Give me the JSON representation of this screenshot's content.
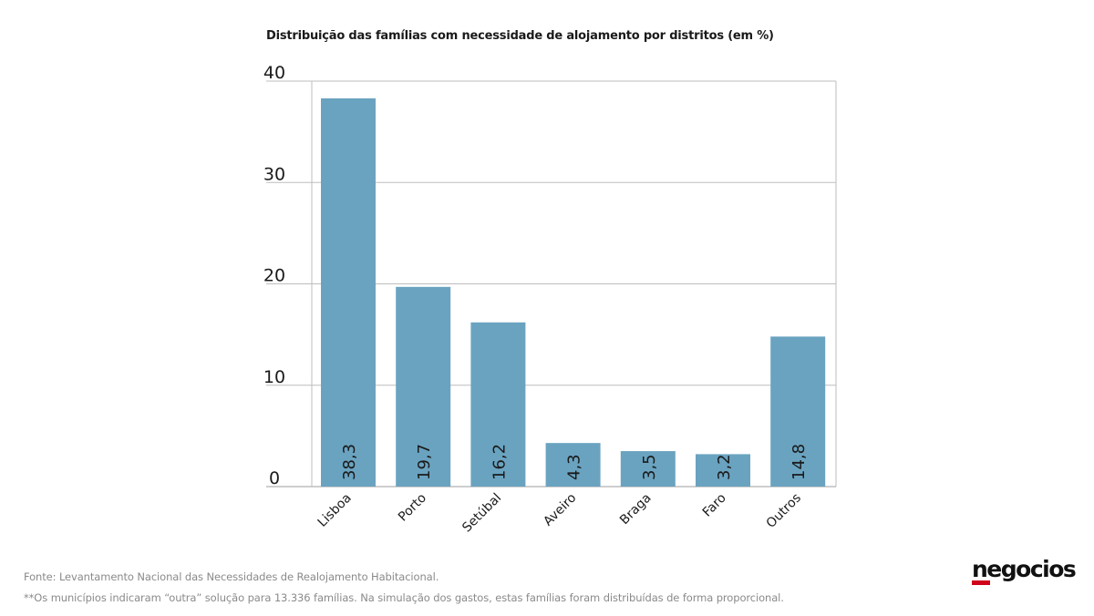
{
  "chart_data": {
    "type": "bar",
    "title": "Distribuição das famílias com necessidade de alojamento por distritos (em %)",
    "categories": [
      "Lisboa",
      "Porto",
      "Setúbal",
      "Aveiro",
      "Braga",
      "Faro",
      "Outros"
    ],
    "values": [
      38.3,
      19.7,
      16.2,
      4.3,
      3.5,
      3.2,
      14.8
    ],
    "value_labels": [
      "38,3",
      "19,7",
      "16,2",
      "4,3",
      "3,5",
      "3,2",
      "14,8"
    ],
    "y_ticks": [
      "0",
      "10",
      "20",
      "30",
      "40"
    ],
    "ylim": [
      0,
      40
    ],
    "grid": true,
    "bar_color": "#6aa3c0",
    "xlabel": "",
    "ylabel": ""
  },
  "footer": {
    "source": "Fonte: Levantamento Nacional das Necessidades de Realojamento Habitacional.",
    "note": "**Os municípios indicaram “outra” solução para 13.336 famílias. Na simulação dos gastos, estas famílias foram distribuídas de forma proporcional."
  },
  "brand": {
    "logo_text": "negocios",
    "accent_color": "#d0021b"
  }
}
